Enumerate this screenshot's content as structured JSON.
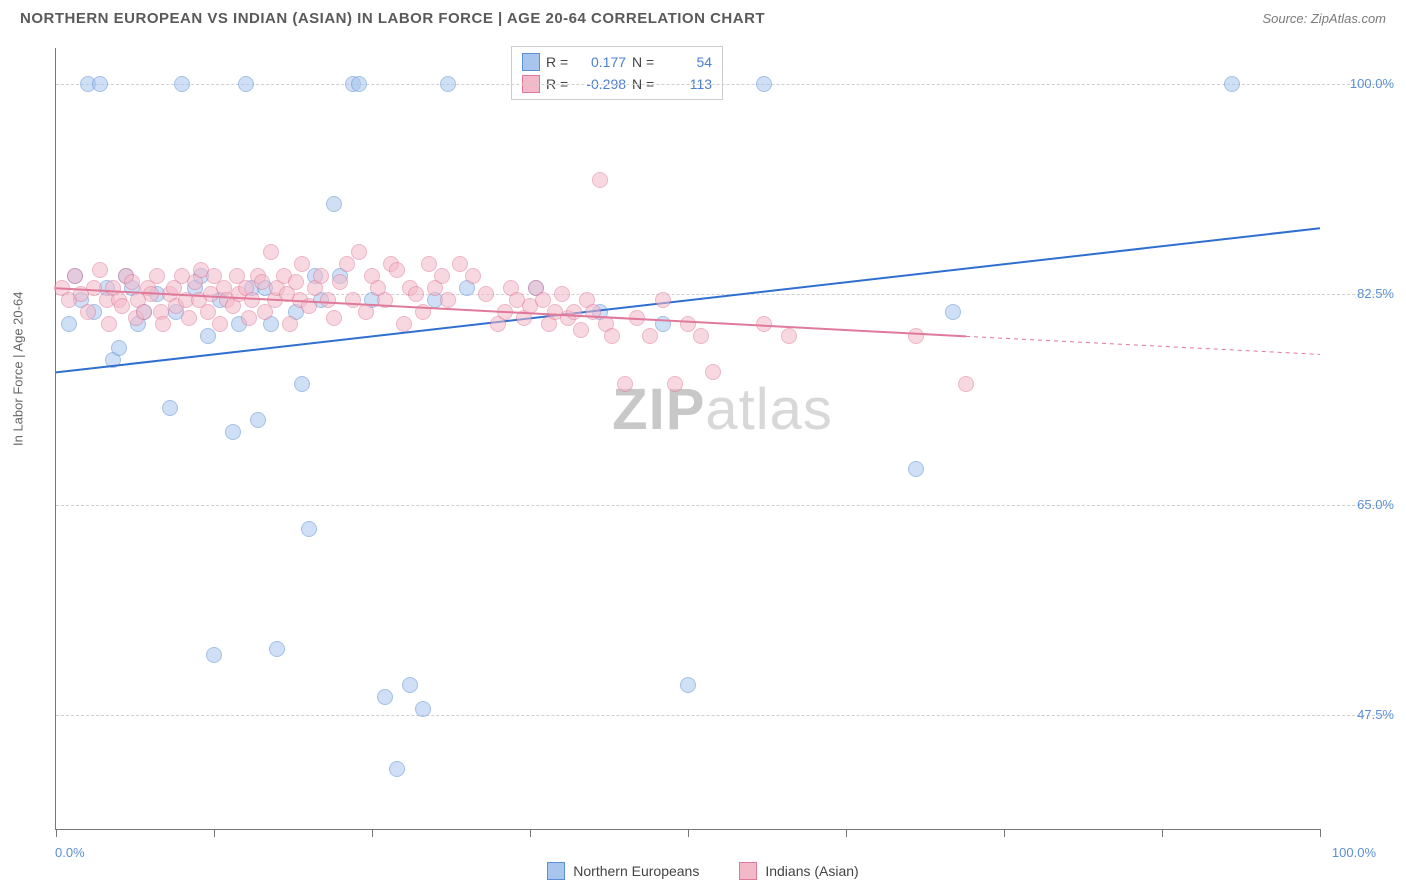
{
  "title": "NORTHERN EUROPEAN VS INDIAN (ASIAN) IN LABOR FORCE | AGE 20-64 CORRELATION CHART",
  "source": "Source: ZipAtlas.com",
  "y_axis_title": "In Labor Force | Age 20-64",
  "watermark_a": "ZIP",
  "watermark_b": "atlas",
  "chart": {
    "type": "scatter",
    "xlim": [
      0,
      100
    ],
    "ylim": [
      38,
      103
    ],
    "x_tick_positions": [
      0,
      12.5,
      25,
      37.5,
      50,
      62.5,
      75,
      87.5,
      100
    ],
    "y_gridlines": [
      47.5,
      65.0,
      82.5,
      100.0
    ],
    "y_tick_labels": [
      "47.5%",
      "65.0%",
      "82.5%",
      "100.0%"
    ],
    "x_min_label": "0.0%",
    "x_max_label": "100.0%",
    "background_color": "#ffffff",
    "grid_color": "#cfcfcf",
    "axis_color": "#777777",
    "tick_label_color": "#5b8fd6",
    "marker_radius": 8,
    "marker_opacity": 0.55,
    "series": [
      {
        "name": "Northern Europeans",
        "fill": "#a8c6ed",
        "stroke": "#5b8fd6",
        "trend": {
          "x1": 0,
          "y1": 76,
          "x2": 100,
          "y2": 88,
          "stroke": "#2f6fd0",
          "width": 2
        },
        "R": "0.177",
        "N": "54",
        "points": [
          [
            1,
            80
          ],
          [
            1.5,
            84
          ],
          [
            2,
            82
          ],
          [
            2.5,
            100
          ],
          [
            3,
            81
          ],
          [
            3.5,
            100
          ],
          [
            4,
            83
          ],
          [
            4.5,
            77
          ],
          [
            5,
            78
          ],
          [
            5.5,
            84
          ],
          [
            6,
            83
          ],
          [
            6.5,
            80
          ],
          [
            7,
            81
          ],
          [
            8,
            82.5
          ],
          [
            9,
            73
          ],
          [
            9.5,
            81
          ],
          [
            10,
            100
          ],
          [
            11,
            83
          ],
          [
            11.5,
            84
          ],
          [
            12,
            79
          ],
          [
            12.5,
            52.5
          ],
          [
            13,
            82
          ],
          [
            14,
            71
          ],
          [
            14.5,
            80
          ],
          [
            15,
            100
          ],
          [
            15.5,
            83
          ],
          [
            16,
            72
          ],
          [
            16.5,
            83
          ],
          [
            17,
            80
          ],
          [
            17.5,
            53
          ],
          [
            19,
            81
          ],
          [
            19.5,
            75
          ],
          [
            20,
            63
          ],
          [
            20.5,
            84
          ],
          [
            21,
            82
          ],
          [
            22,
            90
          ],
          [
            22.5,
            84
          ],
          [
            23.5,
            100
          ],
          [
            24,
            100
          ],
          [
            25,
            82
          ],
          [
            26,
            49
          ],
          [
            27,
            43
          ],
          [
            28,
            50
          ],
          [
            29,
            48
          ],
          [
            30,
            82
          ],
          [
            31,
            100
          ],
          [
            32.5,
            83
          ],
          [
            38,
            83
          ],
          [
            43,
            81
          ],
          [
            48,
            80
          ],
          [
            50,
            50
          ],
          [
            56,
            100
          ],
          [
            68,
            68
          ],
          [
            71,
            81
          ],
          [
            93,
            100
          ]
        ]
      },
      {
        "name": "Indians (Asian)",
        "fill": "#f4b9c8",
        "stroke": "#e07a9a",
        "trend": {
          "x1": 0,
          "y1": 83,
          "x2": 72,
          "y2": 79,
          "stroke": "#e07a9a",
          "width": 2,
          "dash_extend_x2": 100,
          "dash_extend_y2": 77.5
        },
        "R": "-0.298",
        "N": "113",
        "points": [
          [
            0.5,
            83
          ],
          [
            1,
            82
          ],
          [
            1.5,
            84
          ],
          [
            2,
            82.5
          ],
          [
            2.5,
            81
          ],
          [
            3,
            83
          ],
          [
            3.5,
            84.5
          ],
          [
            4,
            82
          ],
          [
            4.2,
            80
          ],
          [
            4.5,
            83
          ],
          [
            5,
            82
          ],
          [
            5.2,
            81.5
          ],
          [
            5.5,
            84
          ],
          [
            6,
            83.5
          ],
          [
            6.3,
            80.5
          ],
          [
            6.5,
            82
          ],
          [
            7,
            81
          ],
          [
            7.3,
            83
          ],
          [
            7.5,
            82.5
          ],
          [
            8,
            84
          ],
          [
            8.3,
            81
          ],
          [
            8.5,
            80
          ],
          [
            9,
            82.5
          ],
          [
            9.3,
            83
          ],
          [
            9.5,
            81.5
          ],
          [
            10,
            84
          ],
          [
            10.3,
            82
          ],
          [
            10.5,
            80.5
          ],
          [
            11,
            83.5
          ],
          [
            11.3,
            82
          ],
          [
            11.5,
            84.5
          ],
          [
            12,
            81
          ],
          [
            12.3,
            82.5
          ],
          [
            12.5,
            84
          ],
          [
            13,
            80
          ],
          [
            13.3,
            83
          ],
          [
            13.5,
            82
          ],
          [
            14,
            81.5
          ],
          [
            14.3,
            84
          ],
          [
            14.5,
            82.5
          ],
          [
            15,
            83
          ],
          [
            15.3,
            80.5
          ],
          [
            15.5,
            82
          ],
          [
            16,
            84
          ],
          [
            16.3,
            83.5
          ],
          [
            16.5,
            81
          ],
          [
            17,
            86
          ],
          [
            17.3,
            82
          ],
          [
            17.5,
            83
          ],
          [
            18,
            84
          ],
          [
            18.3,
            82.5
          ],
          [
            18.5,
            80
          ],
          [
            19,
            83.5
          ],
          [
            19.3,
            82
          ],
          [
            19.5,
            85
          ],
          [
            20,
            81.5
          ],
          [
            20.5,
            83
          ],
          [
            21,
            84
          ],
          [
            21.5,
            82
          ],
          [
            22,
            80.5
          ],
          [
            22.5,
            83.5
          ],
          [
            23,
            85
          ],
          [
            23.5,
            82
          ],
          [
            24,
            86
          ],
          [
            24.5,
            81
          ],
          [
            25,
            84
          ],
          [
            25.5,
            83
          ],
          [
            26,
            82
          ],
          [
            26.5,
            85
          ],
          [
            27,
            84.5
          ],
          [
            27.5,
            80
          ],
          [
            28,
            83
          ],
          [
            28.5,
            82.5
          ],
          [
            29,
            81
          ],
          [
            29.5,
            85
          ],
          [
            30,
            83
          ],
          [
            30.5,
            84
          ],
          [
            31,
            82
          ],
          [
            32,
            85
          ],
          [
            33,
            84
          ],
          [
            34,
            82.5
          ],
          [
            35,
            80
          ],
          [
            35.5,
            81
          ],
          [
            36,
            83
          ],
          [
            36.5,
            82
          ],
          [
            37,
            80.5
          ],
          [
            37.5,
            81.5
          ],
          [
            38,
            83
          ],
          [
            38.5,
            82
          ],
          [
            39,
            80
          ],
          [
            39.5,
            81
          ],
          [
            40,
            82.5
          ],
          [
            40.5,
            80.5
          ],
          [
            41,
            81
          ],
          [
            41.5,
            79.5
          ],
          [
            42,
            82
          ],
          [
            42.5,
            81
          ],
          [
            43,
            92
          ],
          [
            43.5,
            80
          ],
          [
            44,
            79
          ],
          [
            45,
            75
          ],
          [
            46,
            80.5
          ],
          [
            47,
            79
          ],
          [
            48,
            82
          ],
          [
            49,
            75
          ],
          [
            50,
            80
          ],
          [
            51,
            79
          ],
          [
            52,
            76
          ],
          [
            56,
            80
          ],
          [
            58,
            79
          ],
          [
            68,
            79
          ],
          [
            72,
            75
          ]
        ]
      }
    ]
  },
  "stats_box": {
    "R_label": "R =",
    "N_label": "N ="
  },
  "legend_labels": [
    "Northern Europeans",
    "Indians (Asian)"
  ]
}
